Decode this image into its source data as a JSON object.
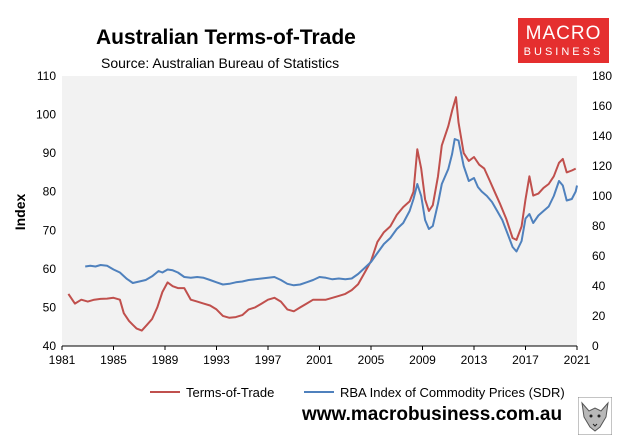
{
  "header": {
    "title": "Australian Terms-of-Trade",
    "subtitle": "Source: Australian Bureau of Statistics"
  },
  "logo": {
    "line1": "MACRO",
    "line2": "BUSINESS",
    "color": "#e52f2f"
  },
  "footer": {
    "url": "www.macrobusiness.com.au"
  },
  "chart_data": {
    "type": "line",
    "title": "Australian Terms-of-Trade",
    "subtitle": "Source: Australian Bureau of Statistics",
    "ylabel": "Index",
    "xlim": [
      1981,
      2021
    ],
    "ylim": [
      40,
      110
    ],
    "y2lim": [
      0,
      180
    ],
    "x_ticks": [
      "1981",
      "1985",
      "1989",
      "1993",
      "1997",
      "2001",
      "2005",
      "2009",
      "2013",
      "2017",
      "2021"
    ],
    "y_ticks": [
      "40",
      "50",
      "60",
      "70",
      "80",
      "90",
      "100",
      "110"
    ],
    "y2_ticks": [
      "0",
      "20",
      "40",
      "60",
      "80",
      "100",
      "120",
      "140",
      "160",
      "180"
    ],
    "grid": false,
    "legend_position": "bottom",
    "series": [
      {
        "name": "Terms-of-Trade",
        "axis": "left",
        "color": "#c0504d",
        "points": [
          [
            1981.5,
            53.5
          ],
          [
            1982.0,
            51.0
          ],
          [
            1982.5,
            52.0
          ],
          [
            1983.0,
            51.5
          ],
          [
            1983.5,
            52.0
          ],
          [
            1984.0,
            52.2
          ],
          [
            1984.5,
            52.3
          ],
          [
            1985.0,
            52.5
          ],
          [
            1985.5,
            52.0
          ],
          [
            1985.8,
            48.5
          ],
          [
            1986.2,
            46.5
          ],
          [
            1986.5,
            45.5
          ],
          [
            1986.8,
            44.5
          ],
          [
            1987.2,
            44.0
          ],
          [
            1987.6,
            45.5
          ],
          [
            1988.0,
            47.0
          ],
          [
            1988.4,
            50.0
          ],
          [
            1988.8,
            54.0
          ],
          [
            1989.2,
            56.5
          ],
          [
            1989.6,
            55.5
          ],
          [
            1990.0,
            55.0
          ],
          [
            1990.5,
            55.0
          ],
          [
            1991.0,
            52.0
          ],
          [
            1991.5,
            51.5
          ],
          [
            1992.0,
            51.0
          ],
          [
            1992.5,
            50.5
          ],
          [
            1993.0,
            49.5
          ],
          [
            1993.5,
            47.8
          ],
          [
            1994.0,
            47.3
          ],
          [
            1994.5,
            47.5
          ],
          [
            1995.0,
            48.0
          ],
          [
            1995.5,
            49.5
          ],
          [
            1996.0,
            50.0
          ],
          [
            1996.5,
            51.0
          ],
          [
            1997.0,
            52.0
          ],
          [
            1997.5,
            52.5
          ],
          [
            1998.0,
            51.5
          ],
          [
            1998.5,
            49.5
          ],
          [
            1999.0,
            49.0
          ],
          [
            1999.5,
            50.0
          ],
          [
            2000.0,
            51.0
          ],
          [
            2000.5,
            52.0
          ],
          [
            2001.0,
            52.0
          ],
          [
            2001.5,
            52.0
          ],
          [
            2002.0,
            52.5
          ],
          [
            2002.5,
            53.0
          ],
          [
            2003.0,
            53.5
          ],
          [
            2003.5,
            54.5
          ],
          [
            2004.0,
            56.0
          ],
          [
            2004.5,
            59.0
          ],
          [
            2005.0,
            62.0
          ],
          [
            2005.5,
            67.0
          ],
          [
            2006.0,
            69.5
          ],
          [
            2006.5,
            71.0
          ],
          [
            2007.0,
            74.0
          ],
          [
            2007.5,
            76.0
          ],
          [
            2008.0,
            77.5
          ],
          [
            2008.3,
            80.0
          ],
          [
            2008.6,
            91.0
          ],
          [
            2008.9,
            86.0
          ],
          [
            2009.2,
            78.0
          ],
          [
            2009.5,
            75.0
          ],
          [
            2009.8,
            76.5
          ],
          [
            2010.2,
            84.0
          ],
          [
            2010.5,
            92.0
          ],
          [
            2011.0,
            97.0
          ],
          [
            2011.3,
            101.0
          ],
          [
            2011.6,
            104.5
          ],
          [
            2011.8,
            98.0
          ],
          [
            2012.2,
            90.0
          ],
          [
            2012.6,
            88.0
          ],
          [
            2013.0,
            89.0
          ],
          [
            2013.4,
            87.0
          ],
          [
            2013.8,
            86.0
          ],
          [
            2014.2,
            83.0
          ],
          [
            2014.6,
            80.0
          ],
          [
            2015.0,
            77.0
          ],
          [
            2015.5,
            73.0
          ],
          [
            2016.0,
            68.0
          ],
          [
            2016.3,
            67.5
          ],
          [
            2016.7,
            71.0
          ],
          [
            2017.0,
            78.0
          ],
          [
            2017.3,
            84.0
          ],
          [
            2017.6,
            79.0
          ],
          [
            2018.0,
            79.5
          ],
          [
            2018.4,
            81.0
          ],
          [
            2018.8,
            82.0
          ],
          [
            2019.2,
            84.0
          ],
          [
            2019.6,
            87.5
          ],
          [
            2019.9,
            88.5
          ],
          [
            2020.2,
            85.0
          ],
          [
            2020.6,
            85.5
          ],
          [
            2020.9,
            86.0
          ]
        ]
      },
      {
        "name": "RBA Index of Commodity Prices (SDR)",
        "axis": "right",
        "color": "#4f81bd",
        "points": [
          [
            1982.8,
            53.0
          ],
          [
            1983.2,
            53.5
          ],
          [
            1983.6,
            53.0
          ],
          [
            1984.0,
            54.0
          ],
          [
            1984.5,
            53.5
          ],
          [
            1985.0,
            51.0
          ],
          [
            1985.5,
            49.0
          ],
          [
            1986.0,
            45.0
          ],
          [
            1986.5,
            42.0
          ],
          [
            1987.0,
            43.0
          ],
          [
            1987.5,
            44.0
          ],
          [
            1988.0,
            46.5
          ],
          [
            1988.5,
            50.0
          ],
          [
            1988.8,
            49.0
          ],
          [
            1989.2,
            51.0
          ],
          [
            1989.6,
            50.5
          ],
          [
            1990.0,
            49.0
          ],
          [
            1990.5,
            46.0
          ],
          [
            1991.0,
            45.5
          ],
          [
            1991.5,
            46.0
          ],
          [
            1992.0,
            45.5
          ],
          [
            1992.5,
            44.0
          ],
          [
            1993.0,
            42.5
          ],
          [
            1993.5,
            41.0
          ],
          [
            1994.0,
            41.5
          ],
          [
            1994.5,
            42.5
          ],
          [
            1995.0,
            43.0
          ],
          [
            1995.5,
            44.0
          ],
          [
            1996.0,
            44.5
          ],
          [
            1996.5,
            45.0
          ],
          [
            1997.0,
            45.5
          ],
          [
            1997.5,
            46.0
          ],
          [
            1998.0,
            44.0
          ],
          [
            1998.5,
            41.5
          ],
          [
            1999.0,
            40.5
          ],
          [
            1999.5,
            41.0
          ],
          [
            2000.0,
            42.5
          ],
          [
            2000.5,
            44.0
          ],
          [
            2001.0,
            46.0
          ],
          [
            2001.5,
            45.5
          ],
          [
            2002.0,
            44.5
          ],
          [
            2002.5,
            45.0
          ],
          [
            2003.0,
            44.5
          ],
          [
            2003.5,
            45.0
          ],
          [
            2004.0,
            48.0
          ],
          [
            2004.5,
            52.0
          ],
          [
            2005.0,
            56.0
          ],
          [
            2005.5,
            62.0
          ],
          [
            2006.0,
            68.0
          ],
          [
            2006.5,
            72.0
          ],
          [
            2007.0,
            78.0
          ],
          [
            2007.5,
            82.0
          ],
          [
            2008.0,
            90.0
          ],
          [
            2008.3,
            98.0
          ],
          [
            2008.6,
            108.0
          ],
          [
            2008.9,
            100.0
          ],
          [
            2009.2,
            84.0
          ],
          [
            2009.5,
            78.0
          ],
          [
            2009.8,
            80.0
          ],
          [
            2010.2,
            95.0
          ],
          [
            2010.5,
            108.0
          ],
          [
            2011.0,
            118.0
          ],
          [
            2011.3,
            128.0
          ],
          [
            2011.5,
            138.0
          ],
          [
            2011.8,
            137.0
          ],
          [
            2012.2,
            120.0
          ],
          [
            2012.6,
            110.0
          ],
          [
            2013.0,
            112.0
          ],
          [
            2013.3,
            106.0
          ],
          [
            2013.6,
            103.0
          ],
          [
            2014.0,
            100.0
          ],
          [
            2014.4,
            96.0
          ],
          [
            2014.8,
            90.0
          ],
          [
            2015.2,
            84.0
          ],
          [
            2015.6,
            75.0
          ],
          [
            2016.0,
            66.0
          ],
          [
            2016.3,
            63.0
          ],
          [
            2016.7,
            70.0
          ],
          [
            2017.0,
            85.0
          ],
          [
            2017.3,
            88.0
          ],
          [
            2017.6,
            82.0
          ],
          [
            2018.0,
            87.0
          ],
          [
            2018.4,
            90.0
          ],
          [
            2018.8,
            93.0
          ],
          [
            2019.2,
            100.0
          ],
          [
            2019.6,
            110.0
          ],
          [
            2019.9,
            107.0
          ],
          [
            2020.2,
            97.0
          ],
          [
            2020.6,
            98.0
          ],
          [
            2020.9,
            103.0
          ],
          [
            2021.0,
            107.0
          ]
        ]
      }
    ]
  }
}
